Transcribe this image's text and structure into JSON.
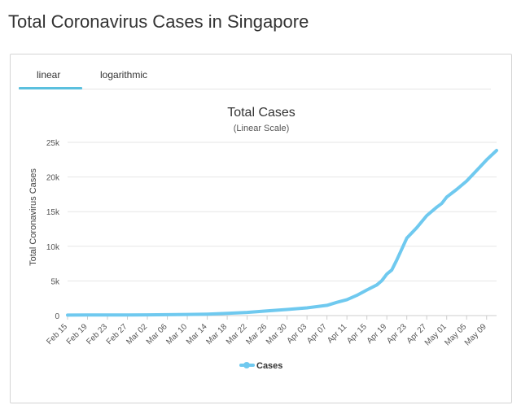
{
  "page_title": "Total Coronavirus Cases in Singapore",
  "tabs": [
    {
      "label": "linear",
      "active": true
    },
    {
      "label": "logarithmic",
      "active": false
    }
  ],
  "colors": {
    "series": "#6fc9ef",
    "accent": "#5bc0de"
  },
  "chart_data": {
    "type": "line",
    "title": "Total Cases",
    "subtitle": "(Linear Scale)",
    "ylabel": "Total Coronavirus Cases",
    "xlabel": "",
    "ylim": [
      0,
      25000
    ],
    "y_ticks": [
      0,
      5000,
      10000,
      15000,
      20000,
      25000
    ],
    "y_tick_labels": [
      "0",
      "5k",
      "10k",
      "15k",
      "20k",
      "25k"
    ],
    "x_tick_labels": [
      "Feb 15",
      "Feb 19",
      "Feb 23",
      "Feb 27",
      "Mar 02",
      "Mar 06",
      "Mar 10",
      "Mar 14",
      "Mar 18",
      "Mar 22",
      "Mar 26",
      "Mar 30",
      "Apr 03",
      "Apr 07",
      "Apr 11",
      "Apr 15",
      "Apr 19",
      "Apr 23",
      "Apr 27",
      "May 01",
      "May 05",
      "May 09"
    ],
    "grid": "horizontal",
    "legend_position": "bottom-center",
    "series": [
      {
        "name": "Cases",
        "x": [
          "Feb 15",
          "Feb 19",
          "Feb 23",
          "Feb 27",
          "Mar 02",
          "Mar 06",
          "Mar 10",
          "Mar 14",
          "Mar 18",
          "Mar 22",
          "Mar 26",
          "Mar 30",
          "Apr 03",
          "Apr 07",
          "Apr 09",
          "Apr 11",
          "Apr 13",
          "Apr 15",
          "Apr 17",
          "Apr 18",
          "Apr 19",
          "Apr 20",
          "Apr 21",
          "Apr 23",
          "Apr 25",
          "Apr 27",
          "Apr 29",
          "Apr 30",
          "May 01",
          "May 03",
          "May 05",
          "May 07",
          "May 09",
          "May 11"
        ],
        "values": [
          72,
          81,
          89,
          96,
          108,
          130,
          166,
          212,
          313,
          455,
          683,
          879,
          1114,
          1481,
          1910,
          2299,
          2918,
          3699,
          4427,
          5050,
          5992,
          6588,
          8014,
          11178,
          12693,
          14423,
          15641,
          16169,
          17101,
          18205,
          19410,
          20939,
          22460,
          23822
        ]
      }
    ]
  }
}
